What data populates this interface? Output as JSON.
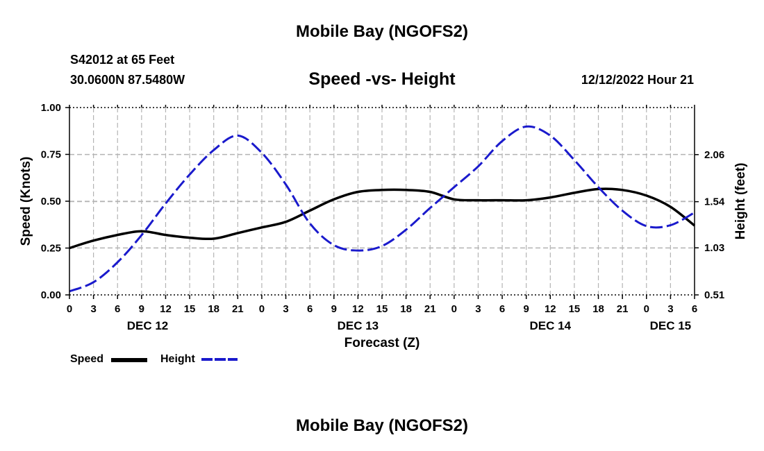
{
  "header": {
    "title": "Mobile Bay (NGOFS2)",
    "station": "S42012 at 65 Feet",
    "coords": "30.0600N  87.5480W",
    "subtitle": "Speed -vs- Height",
    "datetime": "12/12/2022 Hour 21"
  },
  "footer": {
    "title": "Mobile Bay (NGOFS2)"
  },
  "legend": {
    "speed_label": "Speed",
    "height_label": "Height"
  },
  "colors": {
    "speed": "#000000",
    "height": "#1a1acc",
    "grid": "#b4b4b4"
  },
  "chart_data": {
    "type": "line",
    "title": "Speed -vs- Height",
    "xlabel": "Forecast (Z)",
    "ylabel": "Speed (Knots)",
    "y2label": "Height (feet)",
    "xlim": [
      0,
      78
    ],
    "ylim": [
      0,
      1
    ],
    "y2lim": [
      0.51,
      2.58
    ],
    "x_ticks": [
      0,
      3,
      6,
      9,
      12,
      15,
      18,
      21,
      24,
      27,
      30,
      33,
      36,
      39,
      42,
      45,
      48,
      51,
      54,
      57,
      60,
      63,
      66,
      69,
      72,
      75,
      78
    ],
    "x_tick_labels": [
      "0",
      "3",
      "6",
      "9",
      "12",
      "15",
      "18",
      "21",
      "0",
      "3",
      "6",
      "9",
      "12",
      "15",
      "18",
      "21",
      "0",
      "3",
      "6",
      "9",
      "12",
      "15",
      "18",
      "21",
      "0",
      "3",
      "6"
    ],
    "date_labels": [
      {
        "label": "DEC 12",
        "x": 9.75
      },
      {
        "label": "DEC 13",
        "x": 36
      },
      {
        "label": "DEC 14",
        "x": 60
      },
      {
        "label": "DEC 15",
        "x": 75
      }
    ],
    "y_ticks": [
      0,
      0.25,
      0.5,
      0.75,
      1.0
    ],
    "y_tick_labels": [
      "0.00",
      "0.25",
      "0.50",
      "0.75",
      "1.00"
    ],
    "y2_ticks": [
      0.51,
      1.03,
      1.54,
      2.06
    ],
    "y2_tick_labels": [
      "0.51",
      "1.03",
      "1.54",
      "2.06"
    ],
    "series": [
      {
        "name": "Speed",
        "axis": "left",
        "style": "solid",
        "x": [
          0,
          3,
          6,
          9,
          12,
          15,
          18,
          21,
          24,
          27,
          30,
          33,
          36,
          39,
          42,
          45,
          48,
          51,
          54,
          57,
          60,
          63,
          66,
          69,
          72,
          75,
          78
        ],
        "values": [
          0.25,
          0.29,
          0.32,
          0.34,
          0.32,
          0.305,
          0.3,
          0.33,
          0.36,
          0.39,
          0.45,
          0.51,
          0.55,
          0.56,
          0.56,
          0.55,
          0.51,
          0.505,
          0.505,
          0.505,
          0.52,
          0.545,
          0.565,
          0.56,
          0.53,
          0.47,
          0.37
        ]
      },
      {
        "name": "Height",
        "axis": "right",
        "style": "dashed",
        "x": [
          0,
          3,
          6,
          9,
          12,
          15,
          18,
          21,
          24,
          27,
          30,
          33,
          36,
          39,
          42,
          45,
          48,
          51,
          54,
          57,
          60,
          63,
          66,
          69,
          72,
          75,
          78
        ],
        "values": [
          0.55,
          0.65,
          0.87,
          1.17,
          1.52,
          1.84,
          2.11,
          2.27,
          2.08,
          1.73,
          1.3,
          1.06,
          1.0,
          1.05,
          1.23,
          1.47,
          1.7,
          1.93,
          2.21,
          2.37,
          2.27,
          2.0,
          1.7,
          1.44,
          1.27,
          1.28,
          1.42
        ]
      }
    ]
  }
}
